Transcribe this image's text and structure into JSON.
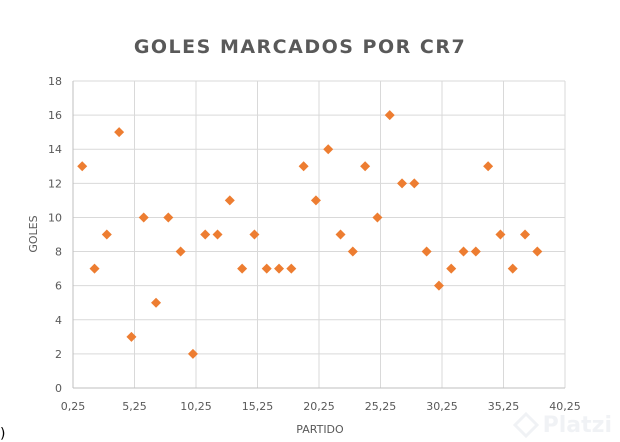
{
  "chart_data": {
    "type": "scatter",
    "title": "GOLES MARCADOS POR CR7",
    "xlabel": "PARTIDO",
    "ylabel": "GOLES",
    "xlim": [
      0.25,
      40.25
    ],
    "ylim": [
      0,
      18
    ],
    "x_ticks": [
      "0,25",
      "5,25",
      "10,25",
      "15,25",
      "20,25",
      "25,25",
      "30,25",
      "35,25",
      "40,25"
    ],
    "y_ticks": [
      "0",
      "2",
      "4",
      "6",
      "8",
      "10",
      "12",
      "14",
      "16",
      "18"
    ],
    "grid": true,
    "marker_color": "#ed7d31",
    "series": [
      {
        "x": [
          1,
          2,
          3,
          4,
          5,
          6,
          7,
          8,
          9,
          10,
          11,
          12,
          13,
          14,
          15,
          16,
          17,
          18,
          19,
          20,
          21,
          22,
          23,
          24,
          25,
          26,
          27,
          28,
          29,
          30,
          31,
          32,
          33,
          34,
          35,
          36,
          37,
          38
        ],
        "y": [
          13,
          7,
          9,
          15,
          3,
          10,
          5,
          10,
          8,
          2,
          9,
          9,
          11,
          7,
          9,
          7,
          7,
          7,
          13,
          11,
          14,
          9,
          8,
          13,
          10,
          16,
          12,
          12,
          8,
          6,
          7,
          8,
          8,
          13,
          9,
          7,
          9,
          8
        ]
      }
    ]
  },
  "watermark": {
    "text": "Platzi",
    "color": "#d6dce5"
  },
  "corner_mark": ")"
}
